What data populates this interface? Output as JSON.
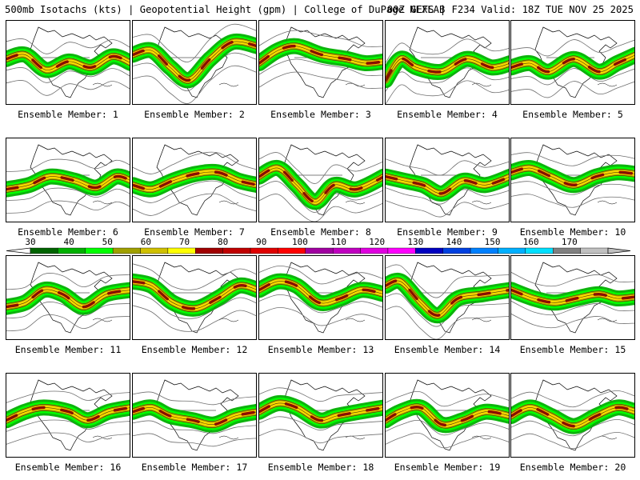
{
  "header": {
    "title": "500mb Isotachs (kts) | Geopotential Height (gpm) | College of DuPage NEXLAB",
    "run_info": "00Z GEFS | F234 Valid: 18Z TUE NOV 25 2025"
  },
  "members": [
    {
      "label": "Ensemble Member: 1",
      "jet": [
        [
          0.0,
          0.45
        ],
        [
          0.15,
          0.4
        ],
        [
          0.32,
          0.58
        ],
        [
          0.5,
          0.48
        ],
        [
          0.68,
          0.55
        ],
        [
          0.85,
          0.42
        ],
        [
          1.0,
          0.5
        ]
      ]
    },
    {
      "label": "Ensemble Member: 2",
      "jet": [
        [
          0.0,
          0.4
        ],
        [
          0.15,
          0.35
        ],
        [
          0.3,
          0.55
        ],
        [
          0.45,
          0.7
        ],
        [
          0.62,
          0.45
        ],
        [
          0.8,
          0.25
        ],
        [
          1.0,
          0.3
        ]
      ]
    },
    {
      "label": "Ensemble Member: 3",
      "jet": [
        [
          0.0,
          0.5
        ],
        [
          0.15,
          0.35
        ],
        [
          0.3,
          0.3
        ],
        [
          0.5,
          0.4
        ],
        [
          0.7,
          0.45
        ],
        [
          0.85,
          0.5
        ],
        [
          1.0,
          0.48
        ]
      ]
    },
    {
      "label": "Ensemble Member: 4",
      "jet": [
        [
          0.0,
          0.7
        ],
        [
          0.12,
          0.45
        ],
        [
          0.25,
          0.55
        ],
        [
          0.45,
          0.6
        ],
        [
          0.65,
          0.45
        ],
        [
          0.85,
          0.55
        ],
        [
          1.0,
          0.5
        ]
      ]
    },
    {
      "label": "Ensemble Member: 5",
      "jet": [
        [
          0.0,
          0.55
        ],
        [
          0.15,
          0.5
        ],
        [
          0.3,
          0.6
        ],
        [
          0.5,
          0.45
        ],
        [
          0.7,
          0.6
        ],
        [
          0.85,
          0.5
        ],
        [
          1.0,
          0.4
        ]
      ]
    },
    {
      "label": "Ensemble Member: 6",
      "jet": [
        [
          0.0,
          0.6
        ],
        [
          0.18,
          0.55
        ],
        [
          0.35,
          0.45
        ],
        [
          0.55,
          0.5
        ],
        [
          0.72,
          0.58
        ],
        [
          0.88,
          0.45
        ],
        [
          1.0,
          0.5
        ]
      ]
    },
    {
      "label": "Ensemble Member: 7",
      "jet": [
        [
          0.0,
          0.55
        ],
        [
          0.15,
          0.6
        ],
        [
          0.32,
          0.5
        ],
        [
          0.5,
          0.42
        ],
        [
          0.68,
          0.4
        ],
        [
          0.85,
          0.5
        ],
        [
          1.0,
          0.55
        ]
      ]
    },
    {
      "label": "Ensemble Member: 8",
      "jet": [
        [
          0.0,
          0.45
        ],
        [
          0.15,
          0.35
        ],
        [
          0.3,
          0.55
        ],
        [
          0.45,
          0.75
        ],
        [
          0.6,
          0.55
        ],
        [
          0.78,
          0.6
        ],
        [
          1.0,
          0.45
        ]
      ]
    },
    {
      "label": "Ensemble Member: 9",
      "jet": [
        [
          0.0,
          0.45
        ],
        [
          0.15,
          0.5
        ],
        [
          0.3,
          0.55
        ],
        [
          0.45,
          0.65
        ],
        [
          0.62,
          0.5
        ],
        [
          0.8,
          0.55
        ],
        [
          1.0,
          0.45
        ]
      ]
    },
    {
      "label": "Ensemble Member: 10",
      "jet": [
        [
          0.0,
          0.4
        ],
        [
          0.15,
          0.35
        ],
        [
          0.32,
          0.45
        ],
        [
          0.5,
          0.55
        ],
        [
          0.68,
          0.45
        ],
        [
          0.85,
          0.4
        ],
        [
          1.0,
          0.42
        ]
      ]
    },
    {
      "label": "Ensemble Member: 11",
      "jet": [
        [
          0.0,
          0.6
        ],
        [
          0.15,
          0.55
        ],
        [
          0.3,
          0.4
        ],
        [
          0.45,
          0.45
        ],
        [
          0.62,
          0.6
        ],
        [
          0.8,
          0.45
        ],
        [
          1.0,
          0.4
        ]
      ]
    },
    {
      "label": "Ensemble Member: 12",
      "jet": [
        [
          0.0,
          0.3
        ],
        [
          0.15,
          0.35
        ],
        [
          0.32,
          0.55
        ],
        [
          0.5,
          0.62
        ],
        [
          0.68,
          0.5
        ],
        [
          0.85,
          0.35
        ],
        [
          1.0,
          0.4
        ]
      ]
    },
    {
      "label": "Ensemble Member: 13",
      "jet": [
        [
          0.0,
          0.4
        ],
        [
          0.15,
          0.3
        ],
        [
          0.3,
          0.35
        ],
        [
          0.48,
          0.55
        ],
        [
          0.65,
          0.5
        ],
        [
          0.82,
          0.4
        ],
        [
          1.0,
          0.45
        ]
      ]
    },
    {
      "label": "Ensemble Member: 14",
      "jet": [
        [
          0.0,
          0.35
        ],
        [
          0.12,
          0.3
        ],
        [
          0.28,
          0.55
        ],
        [
          0.42,
          0.7
        ],
        [
          0.58,
          0.5
        ],
        [
          0.78,
          0.45
        ],
        [
          1.0,
          0.4
        ]
      ]
    },
    {
      "label": "Ensemble Member: 15",
      "jet": [
        [
          0.0,
          0.4
        ],
        [
          0.18,
          0.5
        ],
        [
          0.35,
          0.55
        ],
        [
          0.52,
          0.5
        ],
        [
          0.7,
          0.45
        ],
        [
          0.85,
          0.5
        ],
        [
          1.0,
          0.48
        ]
      ]
    },
    {
      "label": "Ensemble Member: 16",
      "jet": [
        [
          0.0,
          0.55
        ],
        [
          0.15,
          0.45
        ],
        [
          0.3,
          0.4
        ],
        [
          0.5,
          0.45
        ],
        [
          0.65,
          0.55
        ],
        [
          0.82,
          0.45
        ],
        [
          1.0,
          0.4
        ]
      ]
    },
    {
      "label": "Ensemble Member: 17",
      "jet": [
        [
          0.0,
          0.45
        ],
        [
          0.15,
          0.4
        ],
        [
          0.3,
          0.5
        ],
        [
          0.48,
          0.55
        ],
        [
          0.65,
          0.6
        ],
        [
          0.82,
          0.5
        ],
        [
          1.0,
          0.45
        ]
      ]
    },
    {
      "label": "Ensemble Member: 18",
      "jet": [
        [
          0.0,
          0.45
        ],
        [
          0.15,
          0.35
        ],
        [
          0.3,
          0.4
        ],
        [
          0.48,
          0.55
        ],
        [
          0.62,
          0.5
        ],
        [
          0.8,
          0.45
        ],
        [
          1.0,
          0.4
        ]
      ]
    },
    {
      "label": "Ensemble Member: 19",
      "jet": [
        [
          0.0,
          0.55
        ],
        [
          0.12,
          0.45
        ],
        [
          0.28,
          0.4
        ],
        [
          0.45,
          0.6
        ],
        [
          0.62,
          0.55
        ],
        [
          0.8,
          0.45
        ],
        [
          1.0,
          0.5
        ]
      ]
    },
    {
      "label": "Ensemble Member: 20",
      "jet": [
        [
          0.0,
          0.5
        ],
        [
          0.15,
          0.4
        ],
        [
          0.32,
          0.5
        ],
        [
          0.5,
          0.62
        ],
        [
          0.68,
          0.5
        ],
        [
          0.85,
          0.4
        ],
        [
          1.0,
          0.45
        ]
      ]
    }
  ],
  "colorbar": {
    "unit": "kts",
    "ticks": [
      "30",
      "40",
      "50",
      "60",
      "70",
      "80",
      "90",
      "100",
      "110",
      "120",
      "130",
      "140",
      "150",
      "160",
      "170"
    ],
    "colors": [
      "#006400",
      "#00b000",
      "#00ff00",
      "#a0a000",
      "#d0c000",
      "#ffff00",
      "#a00000",
      "#c00000",
      "#e00000",
      "#ff0000",
      "#a000a0",
      "#c000c0",
      "#e000e0",
      "#ff00ff",
      "#0000c0",
      "#0040e0",
      "#0080ff",
      "#00b0ff",
      "#00e0ff",
      "#808080",
      "#c0c0c0"
    ]
  }
}
